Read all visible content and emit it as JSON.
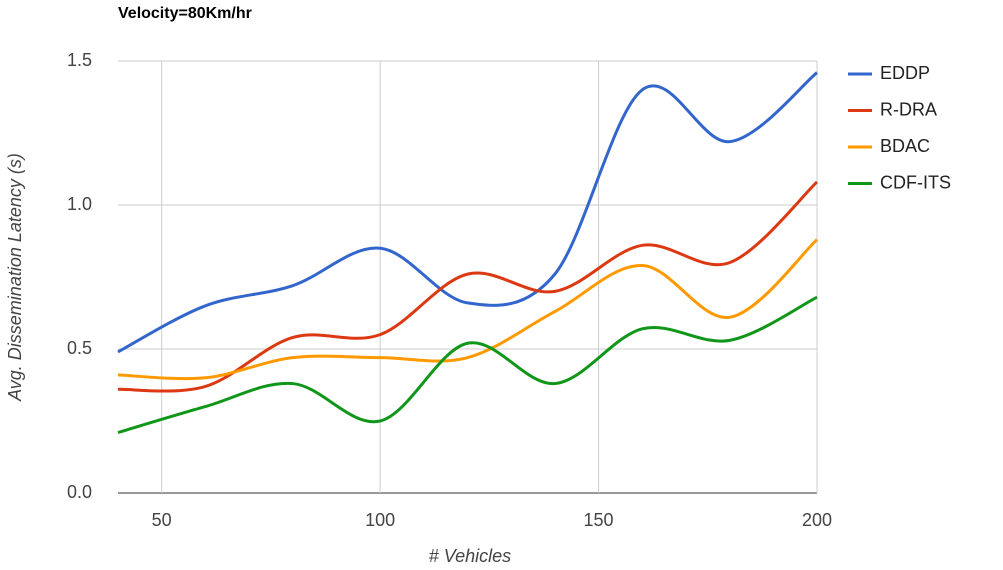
{
  "chart_data": {
    "type": "line",
    "title": "Velocity=80Km/hr",
    "x_label": "# Vehicles",
    "y_label": "Avg. Dissemination Latency (s)",
    "x": [
      40,
      60,
      80,
      100,
      120,
      140,
      160,
      180,
      200
    ],
    "series": [
      {
        "name": "EDDP",
        "color": "#3366cc",
        "values": [
          0.49,
          0.65,
          0.72,
          0.85,
          0.66,
          0.76,
          1.4,
          1.22,
          1.46
        ]
      },
      {
        "name": "R-DRA",
        "color": "#dc3912",
        "values": [
          0.36,
          0.37,
          0.54,
          0.55,
          0.76,
          0.7,
          0.86,
          0.8,
          1.08
        ]
      },
      {
        "name": "BDAC",
        "color": "#ff9900",
        "values": [
          0.41,
          0.4,
          0.47,
          0.47,
          0.47,
          0.63,
          0.79,
          0.61,
          0.88
        ]
      },
      {
        "name": "CDF-ITS",
        "color": "#109618",
        "values": [
          0.21,
          0.3,
          0.38,
          0.25,
          0.52,
          0.38,
          0.57,
          0.53,
          0.68
        ]
      }
    ],
    "xlim": [
      40,
      200
    ],
    "xticks": [
      50,
      100,
      150,
      200
    ],
    "ylim": [
      0,
      1.5
    ],
    "yticks": [
      {
        "value": 0,
        "label": "0.0"
      },
      0.5,
      {
        "value": 1,
        "label": "1.0"
      },
      1.5
    ],
    "grid": true,
    "legend": "right",
    "smooth": true
  }
}
